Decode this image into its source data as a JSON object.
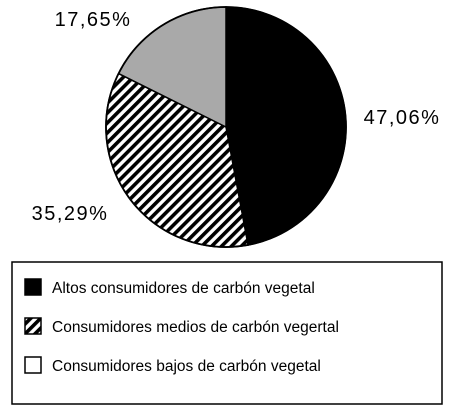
{
  "chart_data": {
    "type": "pie",
    "series": [
      {
        "label": "Altos consumidores de carbón vegetal",
        "value": 47.06,
        "display": "47,06%",
        "fill": "black"
      },
      {
        "label": "Consumidores medios de carbón vegertal",
        "value": 35.29,
        "display": "35,29%",
        "fill": "hatch"
      },
      {
        "label": "Consumidores bajos de carbón vegetal",
        "value": 17.65,
        "display": "17,65%",
        "fill": "gray"
      }
    ],
    "colors": {
      "black": "#000000",
      "gray": "#a9a9a9",
      "hatch_line": "#000000",
      "hatch_bg": "#ffffff"
    },
    "start_angle_deg": 0,
    "direction": "clockwise",
    "legend_position": "bottom"
  }
}
